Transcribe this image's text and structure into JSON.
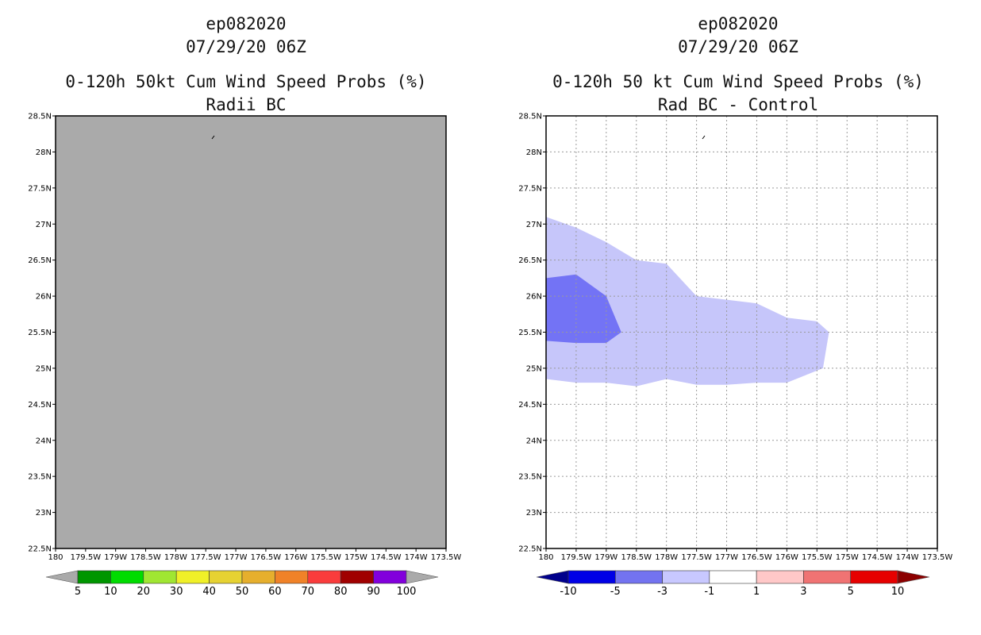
{
  "chart_data": [
    {
      "type": "map",
      "storm_id": "ep082020",
      "datetime": "07/29/20 06Z",
      "title": "0-120h 50kt Cum Wind Speed Probs (%)",
      "subtitle": "Radii BC",
      "background_color": "#aaaaaa",
      "xlim": [
        -180,
        -173.5
      ],
      "ylim": [
        22.5,
        28.5
      ],
      "x_tick_labels": [
        "180",
        "179.5W",
        "179W",
        "178.5W",
        "178W",
        "177.5W",
        "177W",
        "176.5W",
        "176W",
        "175.5W",
        "175W",
        "174.5W",
        "174W",
        "173.5W"
      ],
      "y_tick_labels": [
        "22.5N",
        "23N",
        "23.5N",
        "24N",
        "24.5N",
        "25N",
        "25.5N",
        "26N",
        "26.5N",
        "27N",
        "27.5N",
        "28N",
        "28.5N"
      ],
      "grid": false,
      "colorbar": {
        "labels": [
          "5",
          "10",
          "20",
          "30",
          "40",
          "50",
          "60",
          "70",
          "80",
          "90",
          "100"
        ],
        "colors": [
          "#aaaaaa",
          "#009600",
          "#00dc00",
          "#a0e632",
          "#f0f028",
          "#e6d232",
          "#e6af2d",
          "#f08228",
          "#fa3c3c",
          "#a00000",
          "#8200dc",
          "#aaaaaa"
        ]
      },
      "contours": []
    },
    {
      "type": "map",
      "storm_id": "ep082020",
      "datetime": "07/29/20 06Z",
      "title": "0-120h 50 kt Cum Wind Speed Probs (%)",
      "subtitle": "Rad BC - Control",
      "background_color": "#ffffff",
      "xlim": [
        -180,
        -173.5
      ],
      "ylim": [
        22.5,
        28.5
      ],
      "x_tick_labels": [
        "180",
        "179.5W",
        "179W",
        "178.5W",
        "178W",
        "177.5W",
        "177W",
        "176.5W",
        "176W",
        "175.5W",
        "175W",
        "174.5W",
        "174W",
        "173.5W"
      ],
      "y_tick_labels": [
        "22.5N",
        "23N",
        "23.5N",
        "24N",
        "24.5N",
        "25N",
        "25.5N",
        "26N",
        "26.5N",
        "27N",
        "27.5N",
        "28N",
        "28.5N"
      ],
      "grid": true,
      "colorbar": {
        "labels": [
          "-10",
          "-5",
          "-3",
          "-1",
          "1",
          "3",
          "5",
          "10"
        ],
        "colors": [
          "#00008c",
          "#0000e6",
          "#7373f0",
          "#c8c8ff",
          "#ffffff",
          "#ffc8c8",
          "#f07373",
          "#e60000",
          "#8c0000"
        ]
      },
      "contours": [
        {
          "name": "minus-1-to-minus-3",
          "color": "#c6c6fa",
          "points": [
            [
              -180,
              27.1
            ],
            [
              -179.5,
              26.95
            ],
            [
              -179,
              26.75
            ],
            [
              -178.5,
              26.5
            ],
            [
              -178,
              26.45
            ],
            [
              -177.5,
              26.0
            ],
            [
              -177,
              25.95
            ],
            [
              -176.5,
              25.9
            ],
            [
              -176,
              25.7
            ],
            [
              -175.5,
              25.65
            ],
            [
              -175.3,
              25.5
            ],
            [
              -175.4,
              25.0
            ],
            [
              -176,
              24.8
            ],
            [
              -176.5,
              24.8
            ],
            [
              -177,
              24.77
            ],
            [
              -177.5,
              24.77
            ],
            [
              -178,
              24.85
            ],
            [
              -178.5,
              24.75
            ],
            [
              -179,
              24.8
            ],
            [
              -179.5,
              24.8
            ],
            [
              -180,
              24.85
            ]
          ]
        },
        {
          "name": "minus-3-to-minus-5",
          "color": "#7373f5",
          "points": [
            [
              -180,
              26.25
            ],
            [
              -179.5,
              26.3
            ],
            [
              -179,
              26.0
            ],
            [
              -178.75,
              25.5
            ],
            [
              -179,
              25.35
            ],
            [
              -179.5,
              25.35
            ],
            [
              -180,
              25.38
            ]
          ]
        }
      ]
    }
  ]
}
